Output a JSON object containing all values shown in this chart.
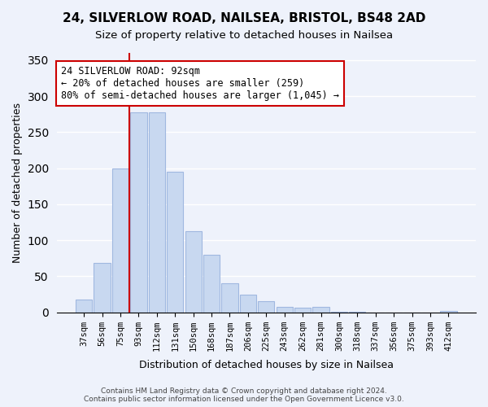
{
  "title": "24, SILVERLOW ROAD, NAILSEA, BRISTOL, BS48 2AD",
  "subtitle": "Size of property relative to detached houses in Nailsea",
  "xlabel": "Distribution of detached houses by size in Nailsea",
  "ylabel": "Number of detached properties",
  "bar_color": "#c8d8f0",
  "bar_edge_color": "#a0b8e0",
  "categories": [
    "37sqm",
    "56sqm",
    "75sqm",
    "93sqm",
    "112sqm",
    "131sqm",
    "150sqm",
    "168sqm",
    "187sqm",
    "206sqm",
    "225sqm",
    "243sqm",
    "262sqm",
    "281sqm",
    "300sqm",
    "318sqm",
    "337sqm",
    "356sqm",
    "375sqm",
    "393sqm",
    "412sqm"
  ],
  "values": [
    18,
    68,
    200,
    278,
    278,
    195,
    113,
    80,
    40,
    25,
    15,
    8,
    6,
    7,
    1,
    1,
    0,
    0,
    0,
    0,
    2
  ],
  "vline_x_index": 3,
  "vline_color": "#cc0000",
  "annotation_title": "24 SILVERLOW ROAD: 92sqm",
  "annotation_line1": "← 20% of detached houses are smaller (259)",
  "annotation_line2": "80% of semi-detached houses are larger (1,045) →",
  "annotation_box_color": "#ffffff",
  "annotation_box_edge": "#cc0000",
  "ylim": [
    0,
    360
  ],
  "yticks": [
    0,
    50,
    100,
    150,
    200,
    250,
    300,
    350
  ],
  "footer1": "Contains HM Land Registry data © Crown copyright and database right 2024.",
  "footer2": "Contains public sector information licensed under the Open Government Licence v3.0.",
  "background_color": "#eef2fb"
}
